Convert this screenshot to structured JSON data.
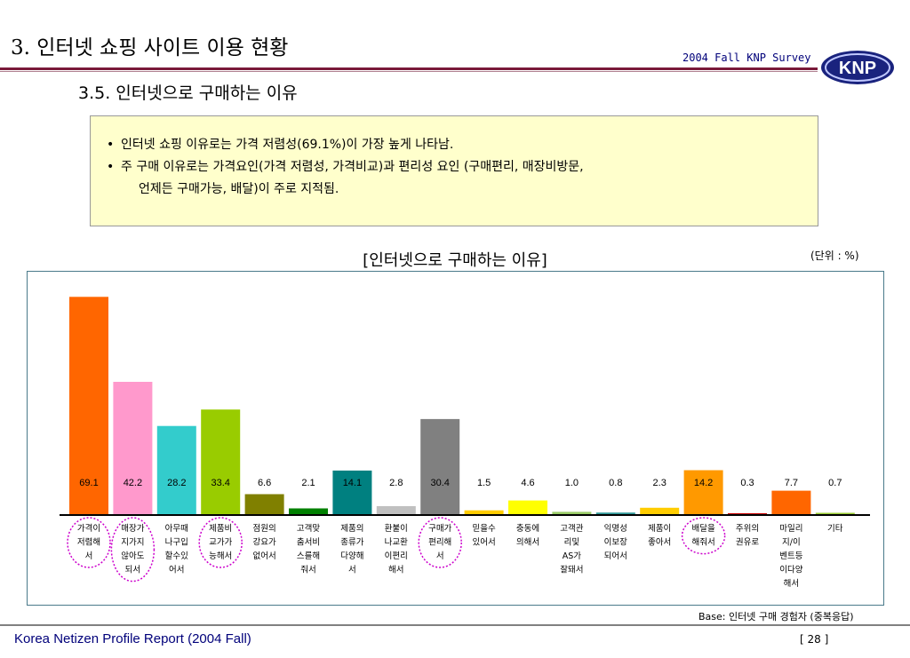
{
  "header": {
    "page_title": "3. 인터넷 쇼핑 사이트 이용 현황",
    "survey_label": "2004 Fall KNP Survey",
    "logo_text": "KNP"
  },
  "section_title": "3.5. 인터넷으로 구매하는 이유",
  "summary": {
    "bullet_char": "•",
    "line1": "인터넷 쇼핑 이유로는 가격 저렴성(69.1%)이 가장 높게 나타남.",
    "line2": "주 구매 이유로는 가격요인(가격 저렴성, 가격비교)과 편리성 요인 (구매편리, 매장비방문,",
    "line2_cont": "언제든 구매가능, 배달)이 주로 지적됨."
  },
  "chart_title": "[인터넷으로 구매하는 이유]",
  "unit_label": "(단위 : %)",
  "chart_data": {
    "type": "bar",
    "title": "[인터넷으로 구매하는 이유]",
    "ylim": [
      0,
      72
    ],
    "grid": false,
    "legend": "none",
    "categories": [
      [
        "가격이",
        "저렴해",
        "서"
      ],
      [
        "매장가",
        "지가지",
        "않아도",
        "되서"
      ],
      [
        "아무때",
        "나구입",
        "할수있",
        "어서"
      ],
      [
        "제품비",
        "교가가",
        "능해서"
      ],
      [
        "점원의",
        "강요가",
        "없어서"
      ],
      [
        "고객맞",
        "춤서비",
        "스를해",
        "줘서"
      ],
      [
        "제품의",
        "종류가",
        "다양해",
        "서"
      ],
      [
        "환불이",
        "나교환",
        "이편리",
        "해서"
      ],
      [
        "구매가",
        "편리해",
        "서"
      ],
      [
        "믿을수",
        "있어서"
      ],
      [
        "충동에",
        "의해서"
      ],
      [
        "고객관",
        "리및",
        "AS가",
        "잘돼서"
      ],
      [
        "익명성",
        "이보장",
        "되어서"
      ],
      [
        "제품이",
        "좋아서"
      ],
      [
        "배달을",
        "해줘서"
      ],
      [
        "주위의",
        "권유로"
      ],
      [
        "마일리",
        "지/이",
        "벤트등",
        "이다양",
        "해서"
      ],
      [
        "기타"
      ]
    ],
    "values": [
      69.1,
      42.2,
      28.2,
      33.4,
      6.6,
      2.1,
      14.1,
      2.8,
      30.4,
      1.5,
      4.6,
      1.0,
      0.8,
      2.3,
      14.2,
      0.3,
      7.7,
      0.7
    ],
    "value_labels": [
      "69.1",
      "42.2",
      "28.2",
      "33.4",
      "6.6",
      "2.1",
      "14.1",
      "2.8",
      "30.4",
      "1.5",
      "4.6",
      "1.0",
      "0.8",
      "2.3",
      "14.2",
      "0.3",
      "7.7",
      "0.7"
    ],
    "colors": [
      "#ff6600",
      "#ff99cc",
      "#33cccc",
      "#99cc00",
      "#808000",
      "#008000",
      "#008080",
      "#c0c0c0",
      "#808080",
      "#ffcc00",
      "#ffff00",
      "#99cc66",
      "#339999",
      "#ffcc00",
      "#ff9900",
      "#cc0000",
      "#ff6600",
      "#99cc33"
    ],
    "highlighted": [
      0,
      1,
      3,
      8,
      14
    ],
    "highlight_color": "#cc00cc"
  },
  "base_note": "Base: 인터넷 구매 경험자 (중복응답)",
  "footer": {
    "left": "Korea Netizen Profile Report (2004 Fall)",
    "page": "[ 28 ]"
  }
}
